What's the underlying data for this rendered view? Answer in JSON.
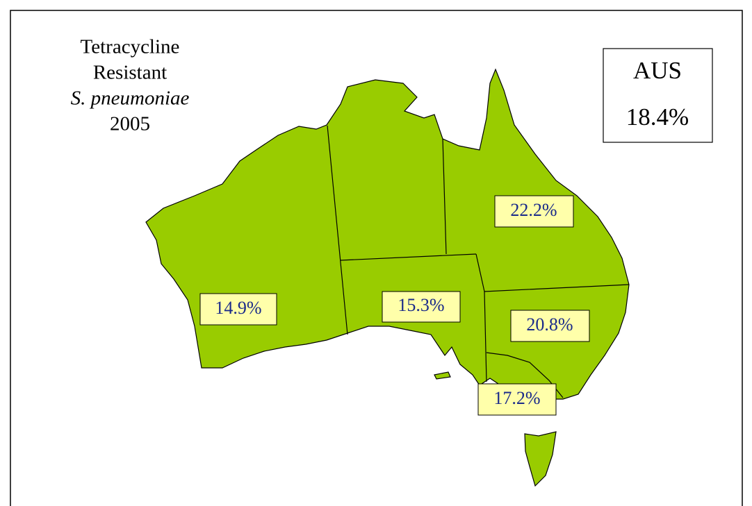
{
  "title": {
    "lines": [
      "Tetracycline",
      "Resistant",
      "S. pneumoniae",
      "2005"
    ]
  },
  "summary": {
    "label": "AUS",
    "value": "18.4%"
  },
  "regions": [
    {
      "label": "22.2%"
    },
    {
      "label": "14.9%"
    },
    {
      "label": "15.3%"
    },
    {
      "label": "20.8%"
    },
    {
      "label": "17.2%"
    }
  ]
}
